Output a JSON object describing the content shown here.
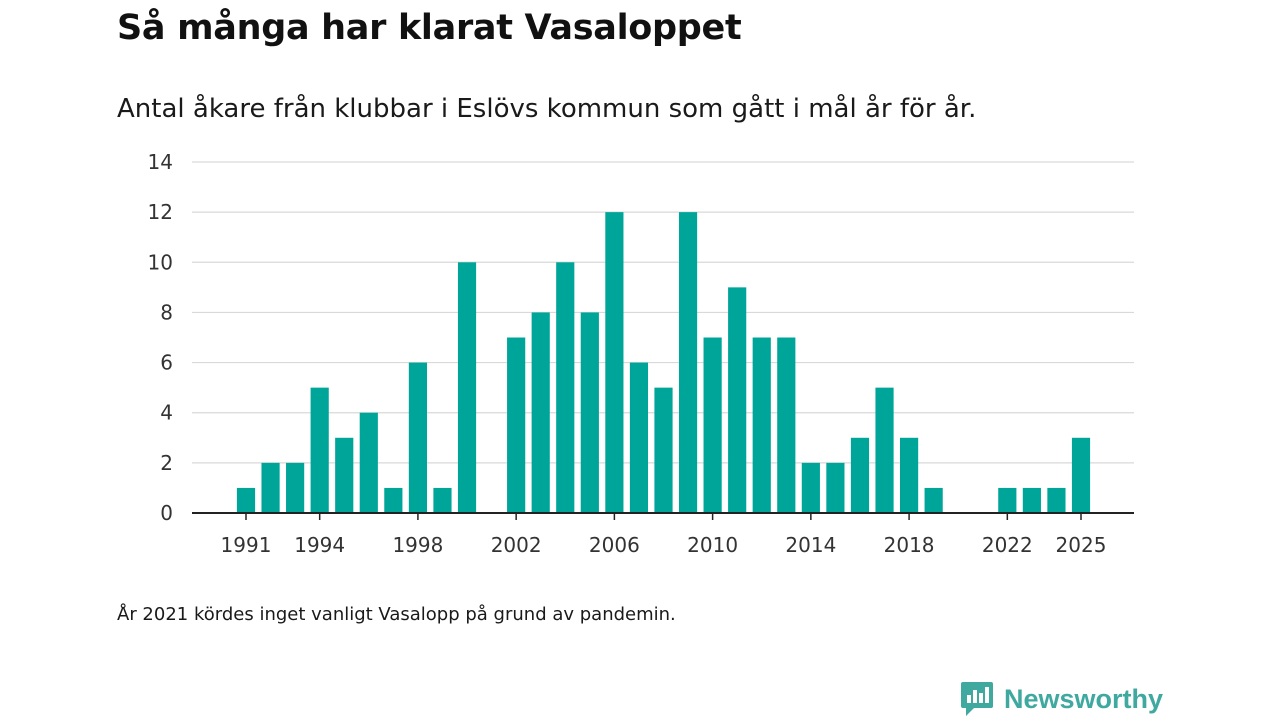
{
  "chart_data": {
    "type": "bar",
    "title": "Så många har klarat Vasaloppet",
    "subtitle": "Antal åkare från klubbar i Eslövs kommun som gått i mål år för år.",
    "xlabel": "",
    "ylabel": "",
    "ylim": [
      0,
      14
    ],
    "yticks": [
      0,
      2,
      4,
      6,
      8,
      10,
      12,
      14
    ],
    "xrange": [
      1991,
      2025
    ],
    "xticks": [
      1991,
      1994,
      1998,
      2002,
      2006,
      2010,
      2014,
      2018,
      2022,
      2025
    ],
    "grid": true,
    "bar_color": "#00a599",
    "years": [
      1991,
      1992,
      1993,
      1994,
      1995,
      1996,
      1997,
      1998,
      1999,
      2000,
      2001,
      2002,
      2003,
      2004,
      2005,
      2006,
      2007,
      2008,
      2009,
      2010,
      2011,
      2012,
      2013,
      2014,
      2015,
      2016,
      2017,
      2018,
      2019,
      2020,
      2021,
      2022,
      2023,
      2024,
      2025
    ],
    "values": [
      1,
      2,
      2,
      5,
      3,
      4,
      1,
      6,
      1,
      10,
      0,
      7,
      8,
      10,
      8,
      12,
      6,
      5,
      12,
      7,
      9,
      7,
      7,
      2,
      2,
      3,
      5,
      3,
      1,
      0,
      0,
      1,
      1,
      1,
      3
    ]
  },
  "footnote": "År 2021 kördes inget vanligt Vasalopp på grund av pandemin.",
  "brand": {
    "name": "Newsworthy",
    "icon": "newsworthy-logo-icon",
    "color": "#3fa9a0"
  }
}
